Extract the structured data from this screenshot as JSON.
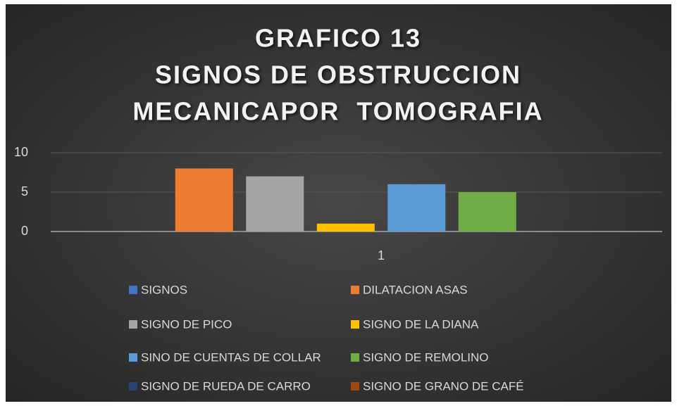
{
  "chart_data": {
    "type": "bar",
    "title": [
      "GRAFICO 13",
      "SIGNOS DE OBSTRUCCION",
      "MECANICAPOR  TOMOGRAFIA"
    ],
    "categories": [
      "1"
    ],
    "series": [
      {
        "name": "SIGNOS",
        "color": "#4472c4",
        "values": [
          0
        ]
      },
      {
        "name": "DILATACION ASAS",
        "color": "#ed7d31",
        "values": [
          8
        ]
      },
      {
        "name": "SIGNO DE PICO",
        "color": "#a5a5a5",
        "values": [
          7
        ]
      },
      {
        "name": "SIGNO DE LA DIANA",
        "color": "#ffc000",
        "values": [
          1
        ]
      },
      {
        "name": "SINO DE CUENTAS DE COLLAR",
        "color": "#5b9bd5",
        "values": [
          6
        ]
      },
      {
        "name": "SIGNO DE REMOLINO",
        "color": "#70ad47",
        "values": [
          5
        ]
      },
      {
        "name": "SIGNO DE RUEDA DE CARRO",
        "color": "#264478",
        "values": [
          0
        ]
      },
      {
        "name": "SIGNO DE GRANO DE CAFÉ",
        "color": "#9e480e",
        "values": [
          0
        ]
      }
    ],
    "ylim": [
      0,
      10
    ],
    "yticks": [
      0,
      5,
      10
    ],
    "grid": true,
    "legend": "bottom"
  }
}
